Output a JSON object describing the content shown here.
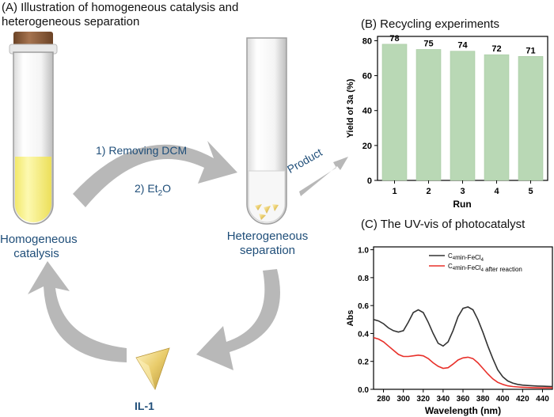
{
  "panel_a": {
    "title": "(A) Illustration of homogeneous catalysis and heterogeneous separation",
    "title_line1": "(A) Illustration of homogeneous catalysis and",
    "title_line2": "heterogeneous separation",
    "step1": "1) Removing DCM",
    "step2_prefix": "2) Et",
    "step2_sub": "2",
    "step2_suffix": "O",
    "product_label": "Product",
    "homogeneous_line1": "Homogeneous",
    "homogeneous_line2": "catalysis",
    "heterogeneous_line1": "Heterogeneous",
    "heterogeneous_line2": "separation",
    "catalyst_label": "IL-1",
    "colors": {
      "arrow": "#b8b8b8",
      "solution": "#fbf59a",
      "text": "#1f4e79",
      "crystal": "#e9cc6b"
    }
  },
  "panel_b": {
    "title": "(B) Recycling experiments",
    "chart_data": {
      "type": "bar",
      "categories": [
        "1",
        "2",
        "3",
        "4",
        "5"
      ],
      "values": [
        78,
        75,
        74,
        72,
        71
      ],
      "data_labels": [
        "78",
        "75",
        "74",
        "72",
        "71"
      ],
      "xlabel": "Run",
      "ylabel": "Yield of 3a (%)",
      "ylim": [
        0,
        80
      ],
      "yticks": [
        0,
        20,
        40,
        60,
        80
      ],
      "bar_color": "#b9d8b5",
      "grid": false
    }
  },
  "panel_c": {
    "title": "(C) The UV-vis of photocatalyst",
    "chart_data": {
      "type": "line",
      "xlabel": "Wavelength (nm)",
      "ylabel": "Abs",
      "xlim": [
        270,
        450
      ],
      "ylim": [
        0,
        1.0
      ],
      "xticks": [
        280,
        300,
        320,
        340,
        360,
        380,
        400,
        420,
        440
      ],
      "yticks": [
        0.0,
        0.2,
        0.4,
        0.6,
        0.8,
        1.0
      ],
      "ytick_labels": [
        "0.0",
        "0.2",
        "0.4",
        "0.6",
        "0.8",
        "1.0"
      ],
      "legend_position": "top-right",
      "series": [
        {
          "legend_base": "C",
          "legend_sub": "4",
          "legend_mid": "min-FeCl",
          "legend_sub2": "4",
          "legend_suffix": "",
          "color": "#333333",
          "x": [
            270,
            275,
            280,
            285,
            290,
            295,
            300,
            305,
            310,
            315,
            320,
            325,
            330,
            335,
            340,
            345,
            350,
            355,
            360,
            365,
            370,
            375,
            380,
            385,
            390,
            395,
            400,
            405,
            410,
            415,
            420,
            425,
            430,
            435,
            440,
            445,
            450
          ],
          "y": [
            0.5,
            0.49,
            0.47,
            0.44,
            0.42,
            0.41,
            0.42,
            0.48,
            0.55,
            0.57,
            0.55,
            0.48,
            0.4,
            0.33,
            0.31,
            0.34,
            0.42,
            0.52,
            0.58,
            0.59,
            0.57,
            0.5,
            0.41,
            0.31,
            0.22,
            0.14,
            0.09,
            0.06,
            0.045,
            0.035,
            0.03,
            0.027,
            0.025,
            0.023,
            0.022,
            0.021,
            0.02
          ]
        },
        {
          "legend_base": "C",
          "legend_sub": "4",
          "legend_mid": "min-FeCl",
          "legend_sub2": "4",
          "legend_suffix": " after reaction",
          "color": "#e8302a",
          "x": [
            270,
            275,
            280,
            285,
            290,
            295,
            300,
            305,
            310,
            315,
            320,
            325,
            330,
            335,
            340,
            345,
            350,
            355,
            360,
            365,
            370,
            375,
            380,
            385,
            390,
            395,
            400,
            405,
            410,
            415,
            420,
            425,
            430,
            435,
            440,
            445,
            450
          ],
          "y": [
            0.37,
            0.36,
            0.34,
            0.31,
            0.28,
            0.25,
            0.235,
            0.235,
            0.24,
            0.245,
            0.24,
            0.22,
            0.19,
            0.165,
            0.15,
            0.155,
            0.18,
            0.21,
            0.225,
            0.23,
            0.22,
            0.19,
            0.15,
            0.11,
            0.075,
            0.05,
            0.035,
            0.025,
            0.02,
            0.017,
            0.015,
            0.013,
            0.012,
            0.011,
            0.01,
            0.01,
            0.01
          ]
        }
      ]
    }
  }
}
